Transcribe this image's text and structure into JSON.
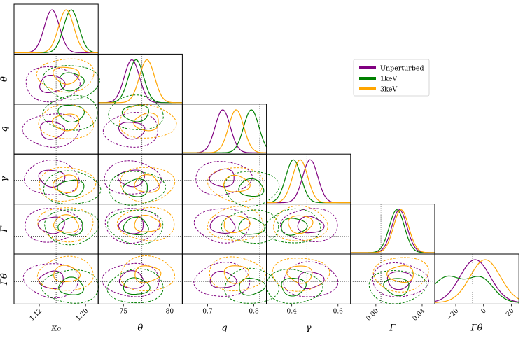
{
  "chart_data": {
    "type": "corner",
    "title": "",
    "parameters": [
      {
        "key": "kappa0",
        "label": "κ₀",
        "ticks": [
          "1.12",
          "1.20"
        ],
        "ticks_rotated": true
      },
      {
        "key": "theta",
        "label": "θ",
        "ticks": [
          "75",
          "80"
        ],
        "ticks_rotated": false
      },
      {
        "key": "q",
        "label": "q",
        "ticks": [
          "0.7",
          "0.8"
        ],
        "ticks_rotated": false
      },
      {
        "key": "gamma",
        "label": "γ",
        "ticks": [
          "0.4",
          "0.6"
        ],
        "ticks_rotated": false
      },
      {
        "key": "Gamma",
        "label": "Γ",
        "ticks": [
          "0.00",
          "0.04"
        ],
        "ticks_rotated": true
      },
      {
        "key": "Gamma_theta",
        "label": "Γθ",
        "ticks": [
          "−20",
          "0",
          "20"
        ],
        "ticks_rotated": true
      }
    ],
    "true_values_fraction": [
      0.5,
      0.52,
      0.92,
      0.48,
      0.36,
      0.45
    ],
    "series": [
      {
        "name": "Unperturbed",
        "color": "#800080",
        "peaks": [
          0.45,
          0.4,
          0.48,
          0.52,
          0.58,
          0.48
        ]
      },
      {
        "name": "1keV",
        "color": "#008000",
        "peaks": [
          0.68,
          0.45,
          0.82,
          0.32,
          0.55,
          0.35
        ]
      },
      {
        "name": "3keV",
        "color": "#ffa500",
        "peaks": [
          0.62,
          0.58,
          0.64,
          0.4,
          0.6,
          0.6
        ]
      }
    ],
    "legend": {
      "position": "upper right",
      "entries": [
        "Unperturbed",
        "1keV",
        "3keV"
      ]
    }
  }
}
